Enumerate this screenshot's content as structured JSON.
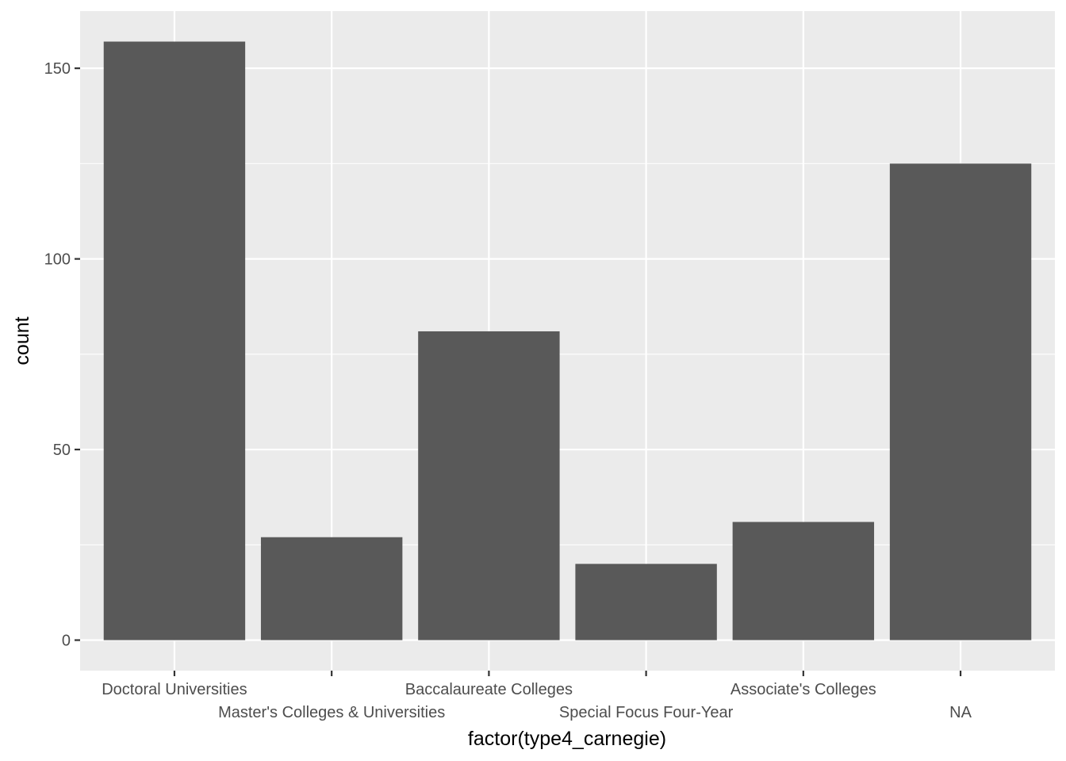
{
  "chart_data": {
    "type": "bar",
    "title": "",
    "xlabel": "factor(type4_carnegie)",
    "ylabel": "count",
    "categories": [
      "Doctoral Universities",
      "Master's Colleges & Universities",
      "Baccalaureate Colleges",
      "Special Focus Four-Year",
      "Associate's Colleges",
      "NA"
    ],
    "values": [
      157,
      27,
      81,
      20,
      31,
      125
    ],
    "ylim": [
      -8,
      165
    ],
    "yticks": [
      0,
      50,
      100,
      150
    ],
    "grid": true,
    "colors": {
      "bar": "#595959",
      "panel": "#ebebeb",
      "grid": "#ffffff",
      "tick_text": "#4d4d4d",
      "tick_mark": "#333333"
    }
  }
}
